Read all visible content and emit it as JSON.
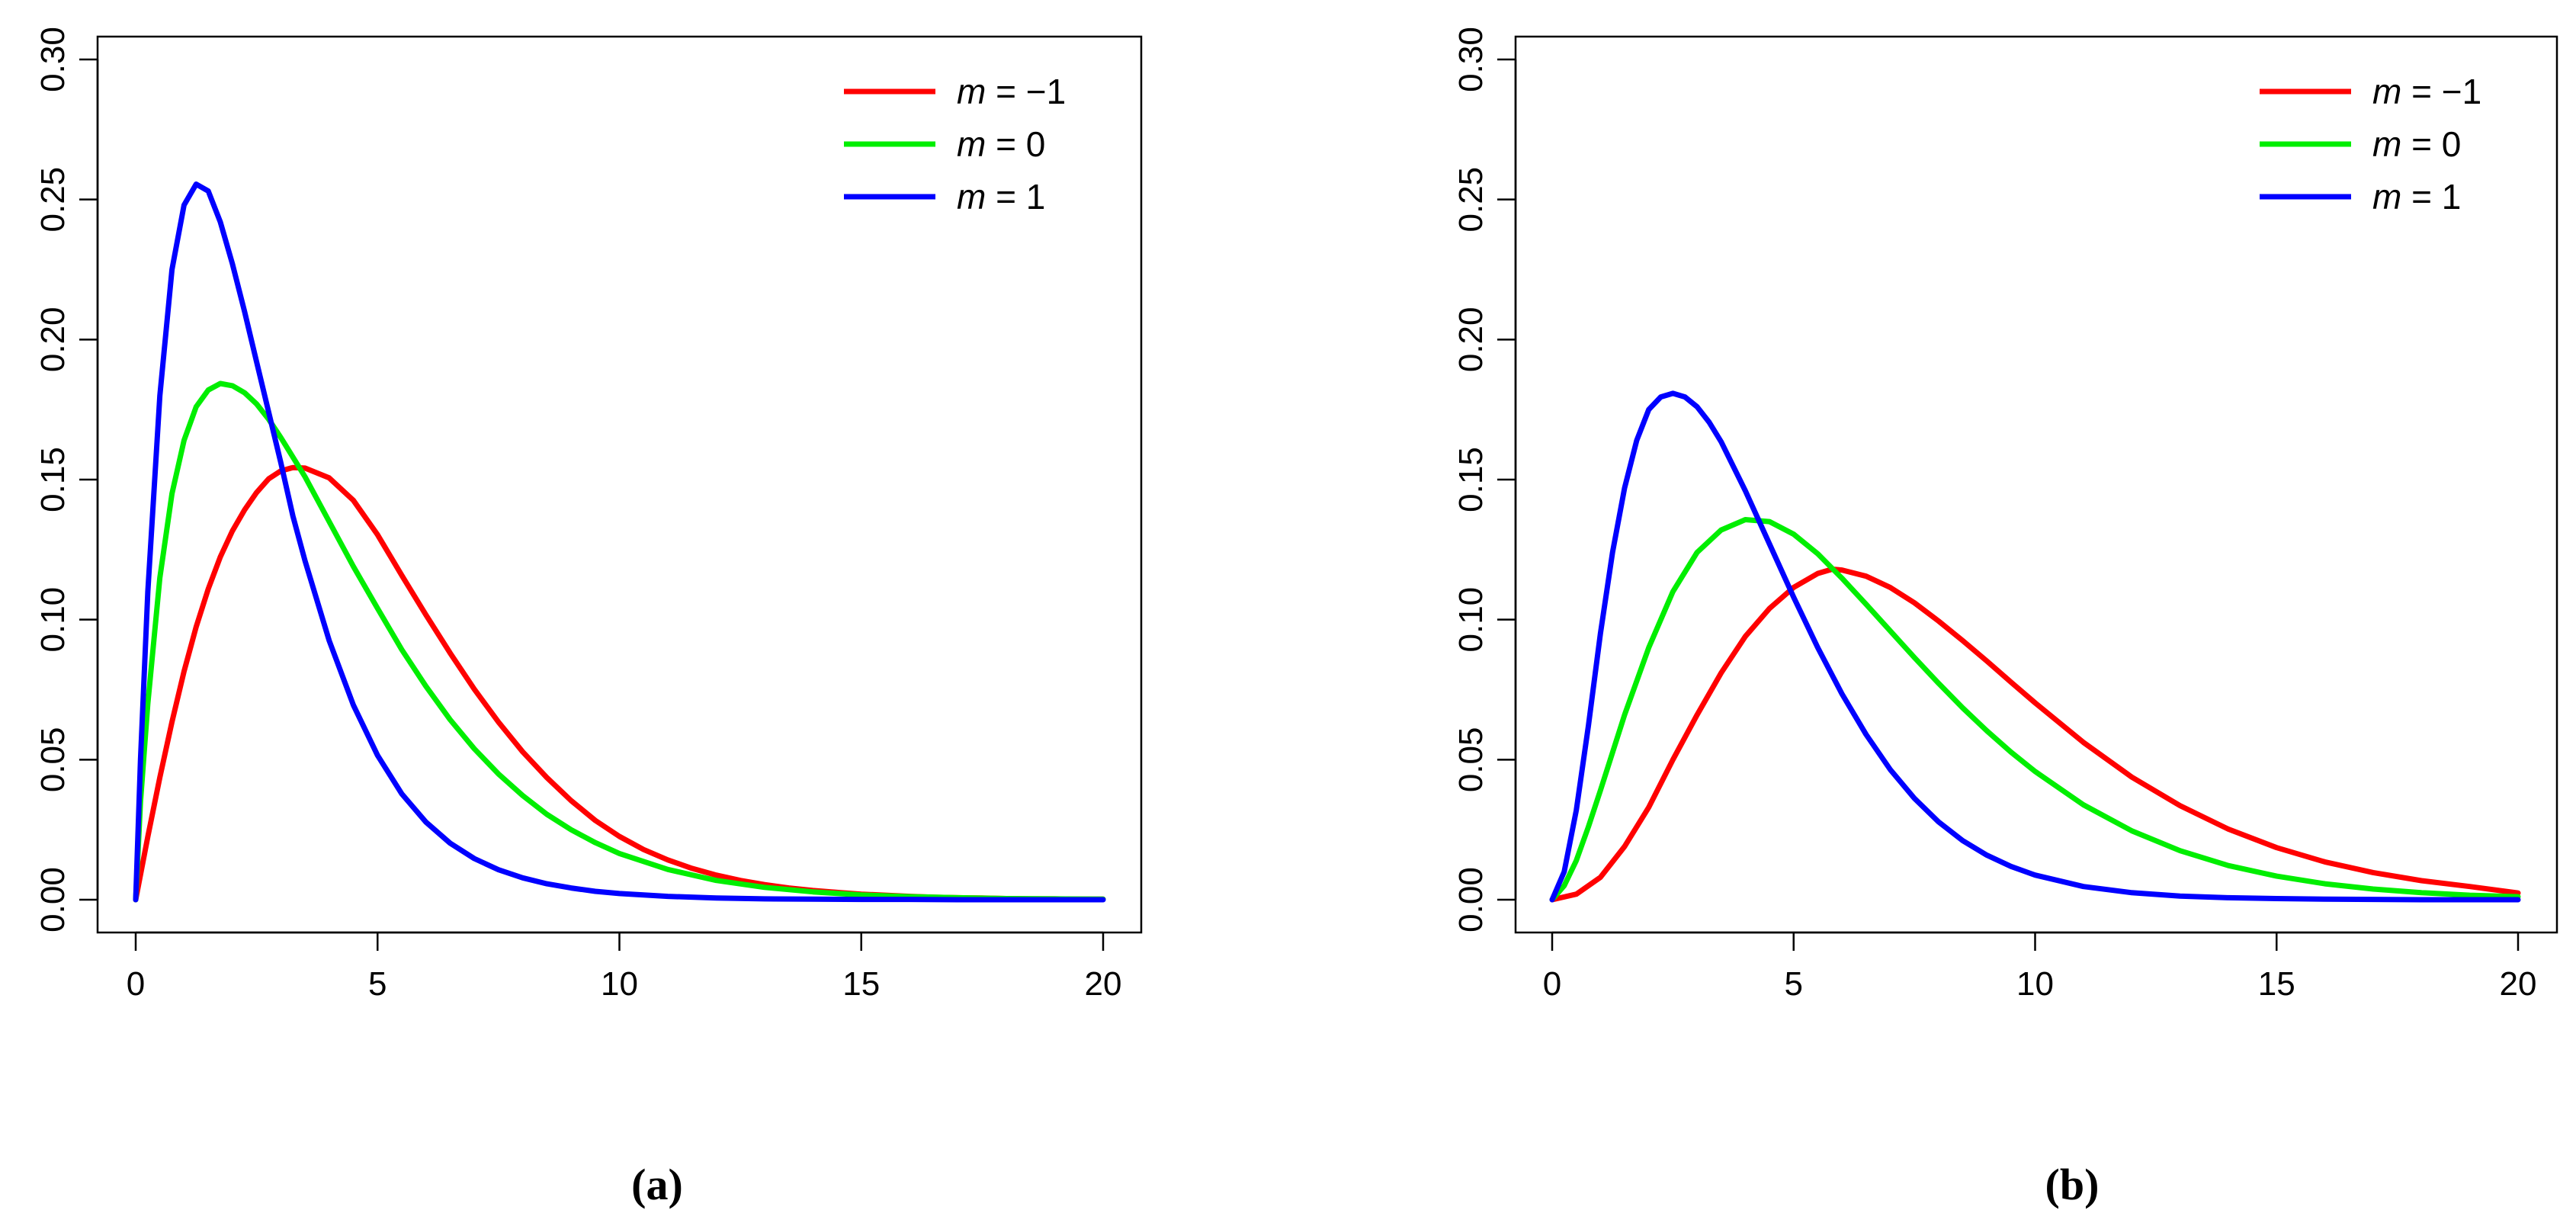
{
  "chart_data": [
    {
      "type": "line",
      "panel_label": "(a)",
      "xlabel": "",
      "ylabel": "",
      "xlim": [
        0,
        20
      ],
      "ylim": [
        0,
        0.3
      ],
      "x_ticks": [
        0,
        5,
        10,
        15,
        20
      ],
      "x_tick_labels": [
        "0",
        "5",
        "10",
        "15",
        "20"
      ],
      "y_ticks": [
        0.0,
        0.05,
        0.1,
        0.15,
        0.2,
        0.25,
        0.3
      ],
      "y_tick_labels": [
        "0.00",
        "0.05",
        "0.10",
        "0.15",
        "0.20",
        "0.25",
        "0.30"
      ],
      "grid": false,
      "legend_position": "top-right",
      "series": [
        {
          "name": "m = −1",
          "name_prefix": "m",
          "name_value": "−1",
          "color": "#ff0000",
          "x": [
            0,
            0.25,
            0.5,
            0.75,
            1,
            1.25,
            1.5,
            1.75,
            2,
            2.25,
            2.5,
            2.75,
            3,
            3.25,
            3.5,
            4,
            4.5,
            5,
            5.5,
            6,
            6.5,
            7,
            7.5,
            8,
            8.5,
            9,
            9.5,
            10,
            10.5,
            11,
            11.5,
            12,
            12.5,
            13,
            13.5,
            14,
            14.5,
            15,
            15.5,
            16,
            16.5,
            17,
            17.5,
            18,
            18.5,
            19,
            19.5,
            20
          ],
          "y": [
            0,
            0.0225,
            0.0437,
            0.0635,
            0.0815,
            0.0974,
            0.111,
            0.1224,
            0.1317,
            0.1392,
            0.1454,
            0.1503,
            0.1531,
            0.1543,
            0.1541,
            0.1506,
            0.1426,
            0.1303,
            0.1158,
            0.1017,
            0.0881,
            0.0752,
            0.0634,
            0.0528,
            0.0436,
            0.0354,
            0.0283,
            0.0226,
            0.0179,
            0.0142,
            0.0112,
            0.0088,
            0.0069,
            0.0054,
            0.0042,
            0.0033,
            0.0026,
            0.002,
            0.0016,
            0.0012,
            0.0009,
            0.0007,
            0.0006,
            0.0004,
            0.0003,
            0.0003,
            0.0002,
            0.0002
          ]
        },
        {
          "name": "m = 0",
          "name_prefix": "m",
          "name_value": "0",
          "color": "#00ee00",
          "x": [
            0,
            0.1,
            0.25,
            0.5,
            0.75,
            1,
            1.25,
            1.5,
            1.75,
            2,
            2.25,
            2.5,
            2.75,
            3,
            3.5,
            4,
            4.5,
            5,
            5.5,
            6,
            6.5,
            7,
            7.5,
            8,
            8.5,
            9,
            9.5,
            10,
            11,
            12,
            13,
            14,
            15,
            16,
            17,
            18,
            19,
            20
          ],
          "y": [
            0,
            0.035,
            0.07,
            0.115,
            0.145,
            0.164,
            0.176,
            0.182,
            0.1843,
            0.1835,
            0.181,
            0.177,
            0.1715,
            0.165,
            0.151,
            0.135,
            0.119,
            0.104,
            0.0893,
            0.0762,
            0.0643,
            0.0539,
            0.0449,
            0.0372,
            0.0305,
            0.025,
            0.0204,
            0.0165,
            0.0108,
            0.0069,
            0.0044,
            0.0028,
            0.0017,
            0.0011,
            0.0007,
            0.0004,
            0.0003,
            0.0002
          ]
        },
        {
          "name": "m = 1",
          "name_prefix": "m",
          "name_value": "1",
          "color": "#0000ff",
          "x": [
            0,
            0.1,
            0.25,
            0.5,
            0.75,
            1,
            1.25,
            1.5,
            1.75,
            2,
            2.25,
            2.5,
            2.75,
            3,
            3.25,
            3.5,
            4,
            4.5,
            5,
            5.5,
            6,
            6.5,
            7,
            7.5,
            8,
            8.5,
            9,
            9.5,
            10,
            11,
            12,
            13,
            14,
            15,
            16,
            17,
            18,
            19,
            20
          ],
          "y": [
            0,
            0.05,
            0.11,
            0.18,
            0.225,
            0.248,
            0.2555,
            0.253,
            0.242,
            0.227,
            0.21,
            0.192,
            0.174,
            0.156,
            0.137,
            0.121,
            0.0925,
            0.0695,
            0.0515,
            0.0378,
            0.0277,
            0.0202,
            0.0147,
            0.0107,
            0.0078,
            0.0057,
            0.0042,
            0.003,
            0.0022,
            0.0012,
            0.0006,
            0.0003,
            0.0002,
            0.0001,
            0.0001,
            0,
            0,
            0,
            0
          ]
        }
      ]
    },
    {
      "type": "line",
      "panel_label": "(b)",
      "xlabel": "",
      "ylabel": "",
      "xlim": [
        0,
        20
      ],
      "ylim": [
        0,
        0.3
      ],
      "x_ticks": [
        0,
        5,
        10,
        15,
        20
      ],
      "x_tick_labels": [
        "0",
        "5",
        "10",
        "15",
        "20"
      ],
      "y_ticks": [
        0.0,
        0.05,
        0.1,
        0.15,
        0.2,
        0.25,
        0.3
      ],
      "y_tick_labels": [
        "0.00",
        "0.05",
        "0.10",
        "0.15",
        "0.20",
        "0.25",
        "0.30"
      ],
      "grid": false,
      "legend_position": "top-right",
      "series": [
        {
          "name": "m = −1",
          "name_prefix": "m",
          "name_value": "−1",
          "color": "#ff0000",
          "x": [
            0,
            0.5,
            1,
            1.5,
            2,
            2.5,
            3,
            3.5,
            4,
            4.5,
            5,
            5.5,
            5.8,
            6,
            6.5,
            7,
            7.5,
            8,
            8.5,
            9,
            9.5,
            10,
            11,
            12,
            13,
            14,
            15,
            16,
            17,
            18,
            19,
            20
          ],
          "y": [
            0,
            0.002,
            0.008,
            0.019,
            0.033,
            0.05,
            0.066,
            0.081,
            0.094,
            0.104,
            0.1115,
            0.1165,
            0.118,
            0.1177,
            0.1155,
            0.1115,
            0.106,
            0.0995,
            0.0925,
            0.0852,
            0.0777,
            0.0703,
            0.0562,
            0.0438,
            0.0336,
            0.0252,
            0.0186,
            0.0135,
            0.0097,
            0.0068,
            0.0047,
            0.0024
          ]
        },
        {
          "name": "m = 0",
          "name_prefix": "m",
          "name_value": "0",
          "color": "#00ee00",
          "x": [
            0,
            0.25,
            0.5,
            0.75,
            1,
            1.5,
            2,
            2.5,
            3,
            3.5,
            4,
            4.5,
            5,
            5.5,
            6,
            6.5,
            7,
            7.5,
            8,
            8.5,
            9,
            9.5,
            10,
            11,
            12,
            13,
            14,
            15,
            16,
            17,
            18,
            19,
            20
          ],
          "y": [
            0,
            0.005,
            0.014,
            0.026,
            0.039,
            0.066,
            0.09,
            0.11,
            0.124,
            0.132,
            0.1357,
            0.135,
            0.1305,
            0.1235,
            0.1148,
            0.1055,
            0.096,
            0.0865,
            0.0773,
            0.0685,
            0.0603,
            0.0527,
            0.0458,
            0.0339,
            0.0246,
            0.0175,
            0.0122,
            0.0084,
            0.0057,
            0.0038,
            0.0025,
            0.0016,
            0.0011
          ]
        },
        {
          "name": "m = 1",
          "name_prefix": "m",
          "name_value": "1",
          "color": "#0000ff",
          "x": [
            0,
            0.25,
            0.5,
            0.75,
            1,
            1.25,
            1.5,
            1.75,
            2,
            2.25,
            2.5,
            2.75,
            3,
            3.25,
            3.5,
            4,
            4.5,
            5,
            5.5,
            6,
            6.5,
            7,
            7.5,
            8,
            8.5,
            9,
            9.5,
            10,
            11,
            12,
            13,
            14,
            15,
            16,
            17,
            18,
            19,
            20
          ],
          "y": [
            0,
            0.01,
            0.032,
            0.062,
            0.095,
            0.124,
            0.147,
            0.164,
            0.175,
            0.1795,
            0.1808,
            0.1795,
            0.176,
            0.1705,
            0.1635,
            0.146,
            0.127,
            0.108,
            0.09,
            0.0735,
            0.059,
            0.0465,
            0.0362,
            0.0278,
            0.0211,
            0.0159,
            0.0119,
            0.0088,
            0.0047,
            0.0025,
            0.0013,
            0.0007,
            0.0004,
            0.0002,
            0.0001,
            0,
            0,
            0
          ]
        }
      ]
    }
  ]
}
